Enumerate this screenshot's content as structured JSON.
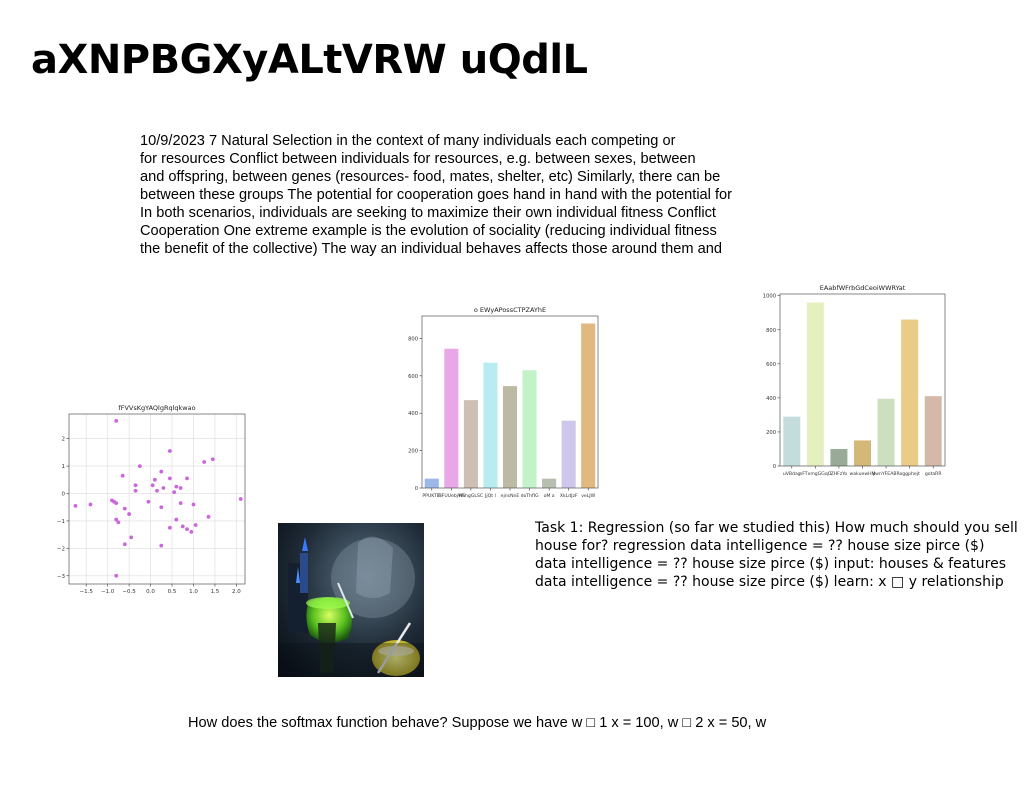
{
  "slide": {
    "title": "aXNPBGXyALtVRW uQdlL",
    "paragraph_lines": [
      "10/9/2023 7 Natural Selection in the context of many individuals each competing or",
      "for resources Conflict between individuals for resources, e.g. between sexes, between",
      "and offspring, between genes (resources- food, mates, shelter, etc) Similarly, there can be",
      "between these groups The potential for cooperation goes hand in hand with the potential for",
      "In both scenarios, individuals are seeking to maximize their own individual fitness Conflict",
      "Cooperation One extreme example is the evolution of sociality (reducing individual fitness",
      "the benefit of the collective) The way an individual behaves affects those around them and"
    ],
    "task_lines": [
      "Task 1: Regression (so far we studied this) How much should you sell",
      "house for? regression data intelligence = ?? house size pirce ($)",
      "data intelligence = ?? house size pirce ($) input: houses & features",
      "data intelligence = ?? house size pirce ($) learn: x □ y relationship"
    ],
    "softmax_line": "How does the softmax function behave? Suppose we have w □ 1 x = 100, w □ 2 x = 50, w",
    "image_icon": "photo-green-liquid-glassware"
  },
  "chart_data": [
    {
      "type": "scatter",
      "title": "fFVVsKgYAQlgRqlqkwao",
      "color": "#cc66dd",
      "xlim": [
        -1.9,
        2.2
      ],
      "ylim": [
        -3.3,
        2.9
      ],
      "xticks": [
        -1.5,
        -1.0,
        -0.5,
        0.0,
        0.5,
        1.0,
        1.5,
        2.0
      ],
      "xtick_labels": [
        "−1.5",
        "−1.0",
        "−0.5",
        "0.0",
        "0.5",
        "1.0",
        "1.5",
        "2.0"
      ],
      "yticks": [
        -3,
        -2,
        -1,
        0,
        1,
        2
      ],
      "ytick_labels": [
        "−3",
        "−2",
        "−1",
        "0",
        "1",
        "2"
      ],
      "grid": true,
      "points": [
        [
          -0.8,
          2.65
        ],
        [
          0.45,
          1.55
        ],
        [
          1.45,
          1.25
        ],
        [
          1.25,
          1.15
        ],
        [
          -0.25,
          1.0
        ],
        [
          0.25,
          0.8
        ],
        [
          -0.65,
          0.65
        ],
        [
          0.45,
          0.55
        ],
        [
          0.1,
          0.5
        ],
        [
          0.85,
          0.55
        ],
        [
          -0.35,
          0.3
        ],
        [
          0.05,
          0.3
        ],
        [
          0.3,
          0.2
        ],
        [
          0.6,
          0.25
        ],
        [
          0.7,
          0.2
        ],
        [
          -0.35,
          0.1
        ],
        [
          0.15,
          0.1
        ],
        [
          0.55,
          0.05
        ],
        [
          -0.9,
          -0.25
        ],
        [
          -0.85,
          -0.3
        ],
        [
          -0.8,
          -0.35
        ],
        [
          -0.05,
          -0.3
        ],
        [
          0.7,
          -0.35
        ],
        [
          1.0,
          -0.4
        ],
        [
          2.1,
          -0.2
        ],
        [
          -1.75,
          -0.45
        ],
        [
          -1.4,
          -0.4
        ],
        [
          -0.6,
          -0.55
        ],
        [
          -0.5,
          -0.75
        ],
        [
          0.25,
          -0.5
        ],
        [
          -0.8,
          -0.95
        ],
        [
          -0.75,
          -1.05
        ],
        [
          0.6,
          -0.95
        ],
        [
          1.35,
          -0.85
        ],
        [
          0.45,
          -1.25
        ],
        [
          0.75,
          -1.2
        ],
        [
          0.85,
          -1.3
        ],
        [
          1.05,
          -1.15
        ],
        [
          0.95,
          -1.4
        ],
        [
          -0.45,
          -1.6
        ],
        [
          -0.6,
          -1.85
        ],
        [
          0.25,
          -1.9
        ],
        [
          -0.8,
          -3.0
        ]
      ]
    },
    {
      "type": "bar",
      "title": "o EWyAPossCTPZAYhE",
      "ylim": [
        0,
        920
      ],
      "yticks": [
        0,
        200,
        400,
        600,
        800
      ],
      "categories": [
        "PPUKTBi",
        "TIFUUebjWa",
        "HEhgGLSC",
        "JjQt l",
        "ejnsNnE",
        "doThfIG",
        "oM a",
        "XkLdJzF",
        "veLJW"
      ],
      "values": [
        50,
        745,
        470,
        670,
        545,
        630,
        50,
        360,
        880
      ],
      "colors": [
        "#9ab8e8",
        "#e8a8e8",
        "#cdbfb4",
        "#b8ecf0",
        "#bcb9a4",
        "#c4f2c8",
        "#b8bfb0",
        "#cfc6ec",
        "#e0b880"
      ]
    },
    {
      "type": "bar",
      "title": "EAabfWFrbGdCeoiWWRYat",
      "ylim": [
        0,
        1010
      ],
      "yticks": [
        0,
        200,
        400,
        600,
        800,
        1000
      ],
      "categories": [
        "uVBdag",
        "nFTxmgGGqO",
        "ZHFzYo",
        "wakuewHM",
        "ywnYFEABR",
        "oggphejt",
        "gotaRR"
      ],
      "values": [
        290,
        960,
        100,
        150,
        395,
        860,
        410
      ],
      "colors": [
        "#c4dcdc",
        "#e4f0c0",
        "#9aaa98",
        "#d4b878",
        "#cce0c0",
        "#e8cc88",
        "#d4b8a8"
      ]
    }
  ]
}
